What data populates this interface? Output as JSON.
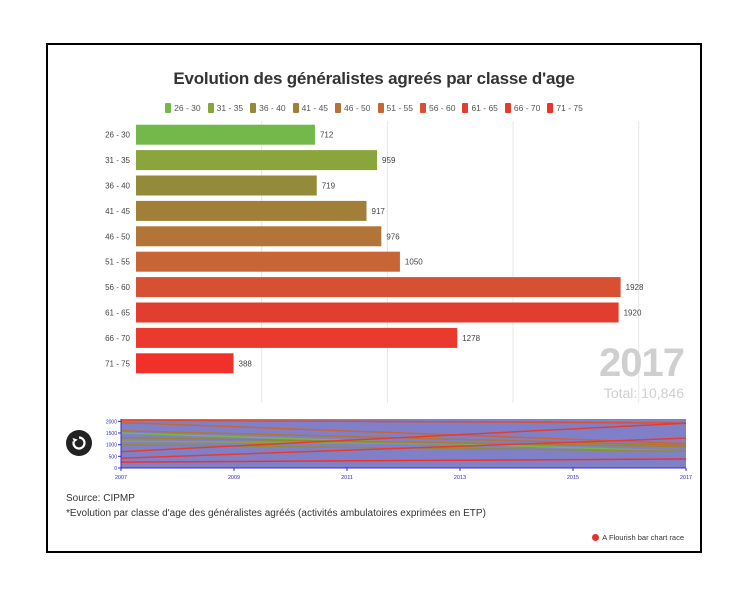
{
  "title": "Evolution des généralistes agreés par classe d'age",
  "year_label": "2017",
  "total_label": "Total: 10,846",
  "source": "Source: CIPMP",
  "note": "*Evolution par classe d'age des généralistes agréés (activités ambulatoires exprimées en ETP)",
  "credit": "A Flourish bar chart race",
  "colors": {
    "bar": [
      "#72b84a",
      "#8aa53c",
      "#938a3a",
      "#a17f38",
      "#b27437",
      "#c76536",
      "#d85034",
      "#e13e30",
      "#ea3a2d",
      "#f2302a"
    ],
    "timeline_bg": "#8080c8",
    "axis": "#2c2cc8"
  },
  "chart_data": {
    "type": "bar",
    "categories": [
      "26 - 30",
      "31 - 35",
      "36 - 40",
      "41 - 45",
      "46 - 50",
      "51 - 55",
      "56 - 60",
      "61 - 65",
      "66 - 70",
      "71 - 75"
    ],
    "values": [
      712,
      959,
      719,
      917,
      976,
      1050,
      1928,
      1920,
      1278,
      388
    ],
    "xlim": [
      0,
      2200
    ],
    "grid": true,
    "legend": "top",
    "timeline": {
      "x_ticks": [
        "2007",
        "2009",
        "2011",
        "2013",
        "2015",
        "2017"
      ],
      "y_ticks": [
        "0",
        "500",
        "1000",
        "1500",
        "2000"
      ],
      "xlim": [
        2007,
        2017
      ],
      "ylim": [
        0,
        2100
      ],
      "series": [
        {
          "start": 1500,
          "end": 712
        },
        {
          "start": 1150,
          "end": 959
        },
        {
          "start": 1000,
          "end": 719
        },
        {
          "start": 1300,
          "end": 917
        },
        {
          "start": 1600,
          "end": 976
        },
        {
          "start": 1950,
          "end": 1050
        },
        {
          "start": 2050,
          "end": 1928
        },
        {
          "start": 700,
          "end": 1920
        },
        {
          "start": 420,
          "end": 1278
        },
        {
          "start": 250,
          "end": 388
        }
      ]
    }
  }
}
